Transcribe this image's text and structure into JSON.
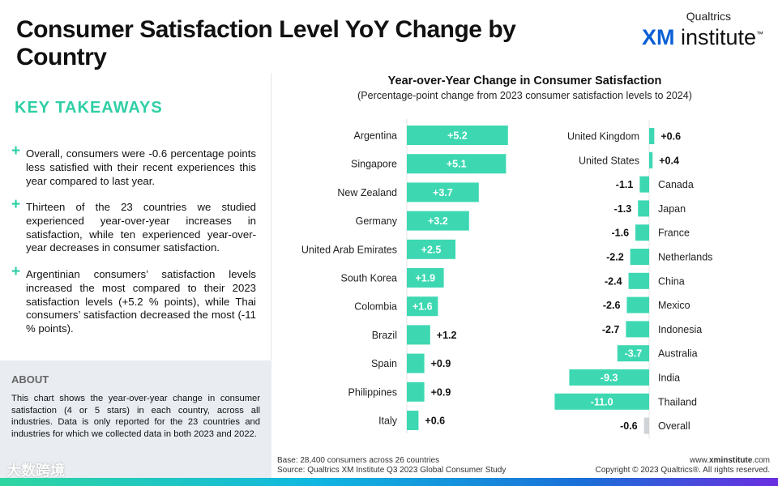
{
  "title": "Consumer Satisfaction Level YoY Change by Country",
  "logo": {
    "top": "Qualtrics",
    "xm": "XM",
    "institute": " institute",
    "tm": "™"
  },
  "takeaways": {
    "heading": "KEY TAKEAWAYS",
    "items": [
      "Overall, consumers were -0.6 percentage points less satisfied with their recent experiences this year compared to last year.",
      "Thirteen of the 23 countries we studied experienced year-over-year increases in satisfaction, while ten experienced year-over-year decreases in consumer satisfaction.",
      "Argentinian consumers’ satisfaction levels increased the most compared to their 2023 satisfaction levels (+5.2 % points), while Thai consumers’ satisfaction decreased the most (-11 % points)."
    ]
  },
  "about": {
    "heading": "ABOUT",
    "text": "This chart shows the year-over-year change in consumer satisfaction (4 or 5 stars) in each country, across all industries. Data is only reported for the 23 countries and industries for which we collected data in both 2023 and 2022."
  },
  "footer": {
    "base": "Base: 28,400 consumers across 26 countries",
    "source": "Source: Qualtrics XM Institute Q3 2023 Global Consumer Study",
    "url_pre": "www.",
    "url_bold": "xminstitute",
    "url_post": ".com",
    "copyright": "Copyright © 2023 Qualtrics®. All rights reserved."
  },
  "watermark": "大数跨境",
  "chart_data": {
    "type": "bar",
    "orientation": "horizontal",
    "title": "Year-over-Year Change in Consumer Satisfaction",
    "subtitle": "(Percentage-point change from 2023 consumer satisfaction levels to 2024)",
    "colors": {
      "bar": "#3dd8b2",
      "overall": "#d0d3d8"
    },
    "panels": [
      {
        "categories": [
          "Argentina",
          "Singapore",
          "New Zealand",
          "Germany",
          "United Arab Emirates",
          "South Korea",
          "Colombia",
          "Brazil",
          "Spain",
          "Philippines",
          "Italy"
        ],
        "values": [
          5.2,
          5.1,
          3.7,
          3.2,
          2.5,
          1.9,
          1.6,
          1.2,
          0.9,
          0.9,
          0.6
        ],
        "labels": [
          "+5.2",
          "+5.1",
          "+3.7",
          "+3.2",
          "+2.5",
          "+1.9",
          "+1.6",
          "+1.2",
          "+0.9",
          "+0.9",
          "+0.6"
        ]
      },
      {
        "categories": [
          "United Kingdom",
          "United States",
          "Canada",
          "Japan",
          "France",
          "Netherlands",
          "China",
          "Mexico",
          "Indonesia",
          "Australia",
          "India",
          "Thailand",
          "Overall"
        ],
        "values": [
          0.6,
          0.4,
          -1.1,
          -1.3,
          -1.6,
          -2.2,
          -2.4,
          -2.6,
          -2.7,
          -3.7,
          -9.3,
          -11.0,
          -0.6
        ],
        "labels": [
          "+0.6",
          "+0.4",
          "-1.1",
          "-1.3",
          "-1.6",
          "-2.2",
          "-2.4",
          "-2.6",
          "-2.7",
          "-3.7",
          "-9.3",
          "-11.0",
          "-0.6"
        ]
      }
    ]
  }
}
